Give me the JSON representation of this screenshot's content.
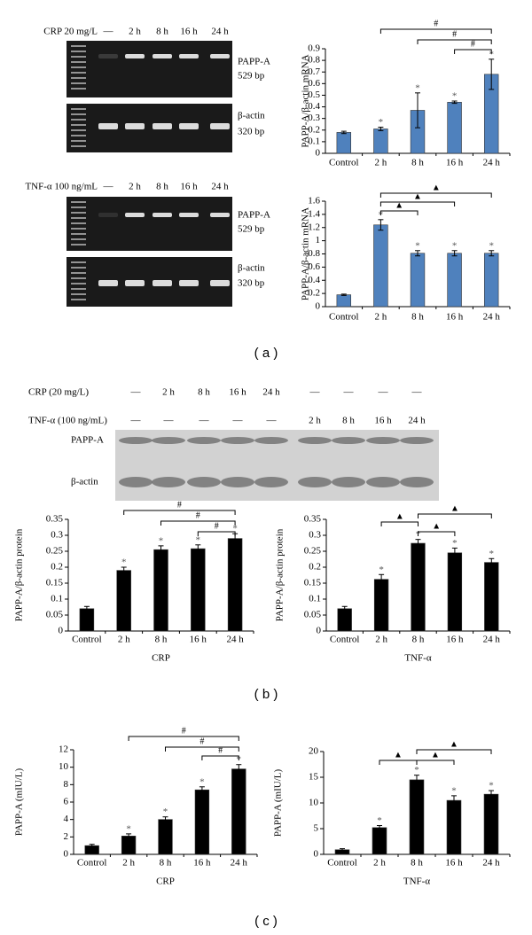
{
  "figure": {
    "panel_labels": [
      "( a )",
      "( b )",
      "( c )"
    ],
    "gels": [
      {
        "treatment": "CRP 20 mg/L",
        "lanes": [
          "—",
          "2 h",
          "8 h",
          "16 h",
          "24 h"
        ],
        "bands": [
          {
            "name": "PAPP-A",
            "size": "529 bp"
          },
          {
            "name": "β-actin",
            "size": "320 bp"
          }
        ]
      },
      {
        "treatment": "TNF-α 100 ng/mL",
        "lanes": [
          "—",
          "2 h",
          "8 h",
          "16 h",
          "24 h"
        ],
        "bands": [
          {
            "name": "PAPP-A",
            "size": "529 bp"
          },
          {
            "name": "β-actin",
            "size": "320 bp"
          }
        ]
      }
    ],
    "blot": {
      "rows": [
        {
          "treatment": "CRP (20 mg/L)",
          "lanes": [
            "—",
            "2 h",
            "8 h",
            "16 h",
            "24 h",
            "—",
            "—",
            "—",
            "—"
          ]
        },
        {
          "treatment": "TNF-α (100 ng/mL)",
          "lanes": [
            "—",
            "—",
            "—",
            "—",
            "—",
            "2 h",
            "8 h",
            "16 h",
            "24 h"
          ]
        }
      ],
      "bands": [
        "PAPP-A",
        "β-actin"
      ]
    }
  },
  "chart_data": [
    {
      "type": "bar",
      "ylabel": "PAPP-A/β-actin mRNA",
      "color": "#4f81bd",
      "categories": [
        "Control",
        "2 h",
        "8 h",
        "16 h",
        "24 h"
      ],
      "values": [
        0.18,
        0.21,
        0.37,
        0.44,
        0.68
      ],
      "errors": [
        0.01,
        0.015,
        0.15,
        0.01,
        0.13
      ],
      "markers": [
        null,
        "*",
        "*",
        "*",
        "*"
      ],
      "ylim": [
        0,
        0.9
      ],
      "yticks": [
        0,
        0.1,
        0.2,
        0.3,
        0.4,
        0.5,
        0.6,
        0.7,
        0.8,
        0.9
      ],
      "brackets": [
        {
          "between": [
            "2 h",
            "24 h"
          ],
          "label": "#"
        },
        {
          "between": [
            "8 h",
            "24 h"
          ],
          "label": "#"
        },
        {
          "between": [
            "16 h",
            "24 h"
          ],
          "label": "#"
        }
      ]
    },
    {
      "type": "bar",
      "ylabel": "PAPP-A/β-actin mRNA",
      "color": "#4f81bd",
      "categories": [
        "Control",
        "2 h",
        "8 h",
        "16 h",
        "24 h"
      ],
      "values": [
        0.18,
        1.24,
        0.81,
        0.81,
        0.81
      ],
      "errors": [
        0.01,
        0.08,
        0.04,
        0.04,
        0.04
      ],
      "markers": [
        null,
        "*",
        "*",
        "*",
        "*"
      ],
      "ylim": [
        0,
        1.6
      ],
      "yticks": [
        0,
        0.2,
        0.4,
        0.6,
        0.8,
        1,
        1.2,
        1.4,
        1.6
      ],
      "brackets": [
        {
          "between": [
            "2 h",
            "24 h"
          ],
          "label": "▲"
        },
        {
          "between": [
            "2 h",
            "16 h"
          ],
          "label": "▲"
        },
        {
          "between": [
            "2 h",
            "8 h"
          ],
          "label": "▲"
        }
      ]
    },
    {
      "type": "bar",
      "ylabel": "PAPP-A/β-actin protein",
      "xlabel": "CRP",
      "color": "#000000",
      "categories": [
        "Control",
        "2 h",
        "8 h",
        "16 h",
        "24 h"
      ],
      "values": [
        0.07,
        0.19,
        0.255,
        0.258,
        0.29
      ],
      "errors": [
        0.007,
        0.01,
        0.012,
        0.012,
        0.015
      ],
      "markers": [
        null,
        "*",
        "*",
        "*",
        "*"
      ],
      "ylim": [
        0,
        0.35
      ],
      "yticks": [
        0,
        0.05,
        0.1,
        0.15,
        0.2,
        0.25,
        0.3,
        0.35
      ],
      "brackets": [
        {
          "between": [
            "2 h",
            "24 h"
          ],
          "label": "#"
        },
        {
          "between": [
            "8 h",
            "24 h"
          ],
          "label": "#"
        },
        {
          "between": [
            "16 h",
            "24 h"
          ],
          "label": "#"
        }
      ]
    },
    {
      "type": "bar",
      "ylabel": "PAPP-A/β-actin protein",
      "xlabel": "TNF-α",
      "color": "#000000",
      "categories": [
        "Control",
        "2 h",
        "8 h",
        "16 h",
        "24 h"
      ],
      "values": [
        0.07,
        0.162,
        0.275,
        0.245,
        0.215
      ],
      "errors": [
        0.007,
        0.015,
        0.012,
        0.015,
        0.012
      ],
      "markers": [
        null,
        "*",
        "*",
        "*",
        "*"
      ],
      "ylim": [
        0,
        0.35
      ],
      "yticks": [
        0,
        0.05,
        0.1,
        0.15,
        0.2,
        0.25,
        0.3,
        0.35
      ],
      "brackets": [
        {
          "between": [
            "2 h",
            "8 h"
          ],
          "label": "▲"
        },
        {
          "between": [
            "8 h",
            "16 h"
          ],
          "label": "▲"
        },
        {
          "between": [
            "8 h",
            "24 h"
          ],
          "label": "▲"
        }
      ]
    },
    {
      "type": "bar",
      "ylabel": "PAPP-A (mIU/L)",
      "xlabel": "CRP",
      "color": "#000000",
      "categories": [
        "Control",
        "2 h",
        "8 h",
        "16 h",
        "24 h"
      ],
      "values": [
        1.0,
        2.1,
        4.0,
        7.4,
        9.8
      ],
      "errors": [
        0.15,
        0.25,
        0.3,
        0.35,
        0.5
      ],
      "markers": [
        null,
        "*",
        "*",
        "*",
        "*"
      ],
      "ylim": [
        0,
        12
      ],
      "yticks": [
        0,
        2,
        4,
        6,
        8,
        10,
        12
      ],
      "brackets": [
        {
          "between": [
            "2 h",
            "24 h"
          ],
          "label": "#"
        },
        {
          "between": [
            "8 h",
            "24 h"
          ],
          "label": "#"
        },
        {
          "between": [
            "16 h",
            "24 h"
          ],
          "label": "#"
        }
      ]
    },
    {
      "type": "bar",
      "ylabel": "PAPP-A (mIU/L)",
      "xlabel": "TNF-α",
      "color": "#000000",
      "categories": [
        "Control",
        "2 h",
        "8 h",
        "16 h",
        "24 h"
      ],
      "values": [
        0.9,
        5.2,
        14.5,
        10.5,
        11.7
      ],
      "errors": [
        0.2,
        0.4,
        0.9,
        0.9,
        0.7
      ],
      "markers": [
        null,
        "*",
        "*",
        "*",
        "*"
      ],
      "ylim": [
        0,
        20
      ],
      "yticks": [
        0,
        5,
        10,
        15,
        20
      ],
      "brackets": [
        {
          "between": [
            "2 h",
            "8 h"
          ],
          "label": "▲"
        },
        {
          "between": [
            "8 h",
            "16 h"
          ],
          "label": "▲"
        },
        {
          "between": [
            "8 h",
            "24 h"
          ],
          "label": "▲"
        }
      ]
    }
  ]
}
